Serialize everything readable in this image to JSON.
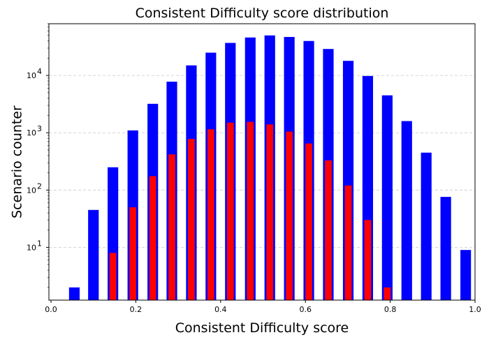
{
  "chart_data": {
    "type": "bar",
    "title": "Consistent Difficulty score distribution",
    "xlabel": "Consistent Difficulty score",
    "ylabel": "Scenario counter",
    "yscale": "log",
    "xlim": [
      -0.005,
      1.0
    ],
    "ylim": [
      1.2,
      80000
    ],
    "grid": "y-major-dashed",
    "x_ticks": [
      "0.0",
      "0.2",
      "0.4",
      "0.6",
      "0.8",
      "1.0"
    ],
    "y_tick_values": [
      10,
      100,
      1000,
      10000
    ],
    "y_ticks": [
      "10",
      "10",
      "10",
      "10"
    ],
    "y_tick_exponents": [
      "1",
      "2",
      "3",
      "4"
    ],
    "series": [
      {
        "color": "#0000ff",
        "bar_width": 0.025,
        "x": [
          0.055,
          0.1,
          0.146,
          0.193,
          0.24,
          0.285,
          0.331,
          0.377,
          0.423,
          0.47,
          0.516,
          0.562,
          0.608,
          0.654,
          0.701,
          0.747,
          0.793,
          0.839,
          0.885,
          0.931,
          0.978
        ],
        "values": [
          2,
          45,
          250,
          1100,
          3200,
          7800,
          15000,
          25000,
          37000,
          46000,
          50000,
          47000,
          40000,
          29000,
          18000,
          9800,
          4500,
          1600,
          450,
          76,
          9
        ]
      },
      {
        "color": "#ff0000",
        "bar_width": 0.016,
        "x": [
          0.146,
          0.193,
          0.24,
          0.285,
          0.331,
          0.377,
          0.423,
          0.47,
          0.516,
          0.562,
          0.608,
          0.654,
          0.701,
          0.747,
          0.793
        ],
        "values": [
          8,
          50,
          175,
          420,
          780,
          1150,
          1500,
          1550,
          1400,
          1050,
          650,
          330,
          120,
          30,
          2
        ]
      }
    ]
  }
}
